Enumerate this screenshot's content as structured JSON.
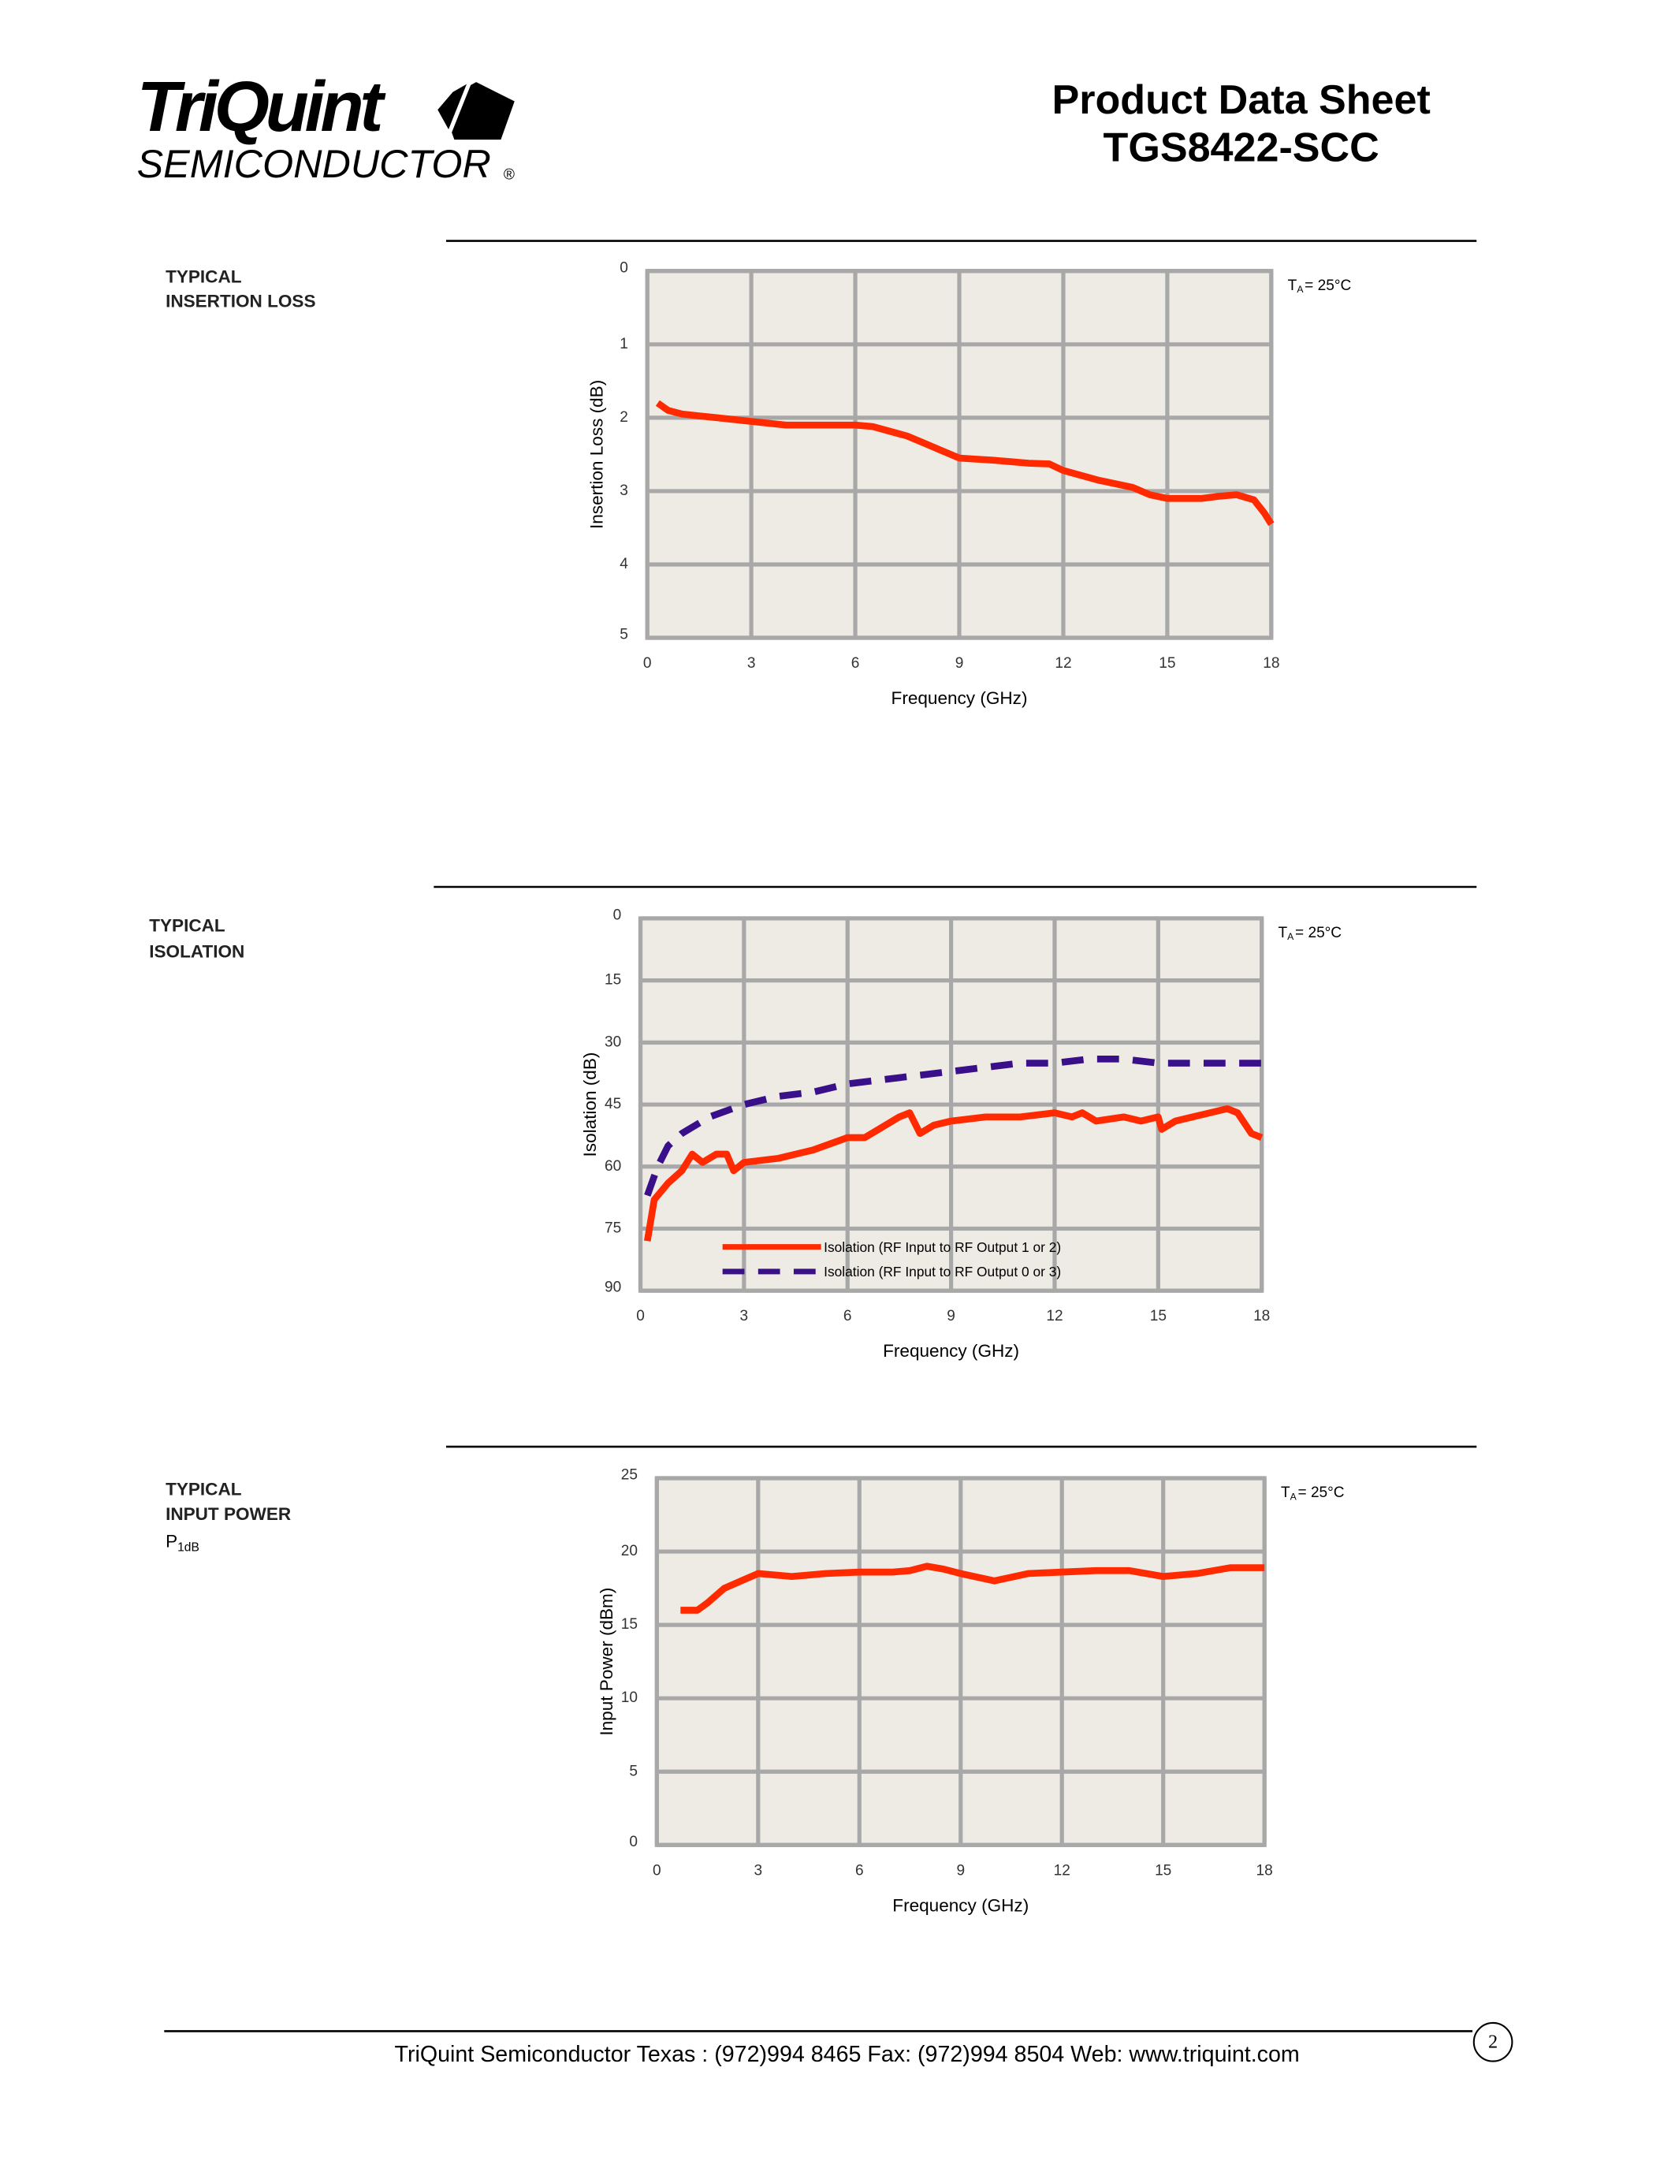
{
  "header": {
    "logo_main": "TriQuint",
    "logo_sub": "SEMICONDUCTOR",
    "logo_mark": "®",
    "title": "Product Data Sheet",
    "part": "TGS8422-SCC"
  },
  "sections": [
    {
      "lines": [
        "TYPICAL",
        "INSERTION LOSS"
      ]
    },
    {
      "lines": [
        "TYPICAL",
        "ISOLATION"
      ]
    },
    {
      "lines": [
        "TYPICAL",
        "INPUT POWER"
      ],
      "symbol": "P",
      "symbol_sub": "1dB"
    }
  ],
  "chart_data": [
    {
      "type": "line",
      "ylabel": "Insertion Loss (dB)",
      "xlabel": "Frequency (GHz)",
      "annotation": {
        "main": "T",
        "sub": "A",
        "rest": "= 25°C"
      },
      "xlim": [
        0,
        18
      ],
      "xticks": [
        0,
        3,
        6,
        9,
        12,
        15,
        18
      ],
      "ylim": [
        5,
        0
      ],
      "yticks": [
        0,
        1,
        2,
        3,
        4,
        5
      ],
      "grid": true,
      "series": [
        {
          "color": "#ff2a00",
          "line_style": "solid",
          "x": [
            0.3,
            0.6,
            1,
            2,
            3,
            4,
            5,
            6,
            6.5,
            7.5,
            8,
            8.5,
            9,
            10,
            10.5,
            11,
            11.6,
            12,
            13,
            14,
            14.5,
            15,
            16,
            16.5,
            17,
            17.5,
            17.8,
            18
          ],
          "values": [
            1.8,
            1.9,
            1.95,
            2.0,
            2.05,
            2.1,
            2.1,
            2.1,
            2.12,
            2.25,
            2.35,
            2.45,
            2.55,
            2.58,
            2.6,
            2.62,
            2.63,
            2.72,
            2.85,
            2.95,
            3.05,
            3.1,
            3.1,
            3.07,
            3.05,
            3.12,
            3.3,
            3.45
          ]
        }
      ]
    },
    {
      "type": "line",
      "ylabel": "Isolation (dB)",
      "xlabel": "Frequency (GHz)",
      "annotation": {
        "main": "T",
        "sub": "A",
        "rest": "= 25°C"
      },
      "xlim": [
        0,
        18
      ],
      "xticks": [
        0,
        3,
        6,
        9,
        12,
        15,
        18
      ],
      "ylim": [
        90,
        0
      ],
      "yticks": [
        0,
        15,
        30,
        45,
        60,
        75,
        90
      ],
      "grid": true,
      "legend": "lower left",
      "series": [
        {
          "name": "Isolation (RF Input to RF Output 1 or 2)",
          "color": "#ff2a00",
          "line_style": "solid",
          "x": [
            0.2,
            0.4,
            0.8,
            1.2,
            1.5,
            1.8,
            2.2,
            2.5,
            2.7,
            3,
            4,
            5,
            6,
            6.5,
            7.5,
            7.8,
            8.1,
            8.5,
            9,
            10,
            11,
            12,
            12.5,
            12.8,
            13.2,
            14,
            14.5,
            15,
            15.1,
            15.5,
            16,
            16.5,
            17,
            17.3,
            17.7,
            18
          ],
          "values": [
            78,
            68,
            64,
            61,
            57,
            59,
            57,
            57,
            61,
            59,
            58,
            56,
            53,
            53,
            48,
            47,
            52,
            50,
            49,
            48,
            48,
            47,
            48,
            47,
            49,
            48,
            49,
            48,
            51,
            49,
            48,
            47,
            46,
            47,
            52,
            53
          ]
        },
        {
          "name": "Isolation (RF Input to RF Output 0 or 3)",
          "color": "#3a0f8a",
          "line_style": "dashed",
          "x": [
            0.2,
            0.5,
            0.8,
            1.2,
            2,
            3,
            4,
            5,
            6,
            7,
            8,
            9,
            10,
            11,
            12,
            13,
            14,
            15,
            16,
            17,
            18
          ],
          "values": [
            67,
            60,
            55,
            52,
            48,
            45,
            43,
            42,
            40,
            39,
            38,
            37,
            36,
            35,
            35,
            34,
            34,
            35,
            35,
            35,
            35
          ]
        }
      ]
    },
    {
      "type": "line",
      "ylabel": "Input Power (dBm)",
      "xlabel": "Frequency (GHz)",
      "annotation": {
        "main": "T",
        "sub": "A",
        "rest": "= 25°C"
      },
      "xlim": [
        0,
        18
      ],
      "xticks": [
        0,
        3,
        6,
        9,
        12,
        15,
        18
      ],
      "ylim": [
        0,
        25
      ],
      "yticks": [
        0,
        5,
        10,
        15,
        20,
        25
      ],
      "grid": true,
      "series": [
        {
          "color": "#ff2a00",
          "line_style": "solid",
          "x": [
            0.7,
            1.2,
            1.5,
            2,
            2.5,
            3,
            4,
            5,
            6,
            7,
            7.5,
            8,
            8.5,
            9,
            10,
            11,
            12,
            13,
            14,
            15,
            16,
            17,
            18
          ],
          "values": [
            16,
            16,
            16.5,
            17.5,
            18,
            18.5,
            18.3,
            18.5,
            18.6,
            18.6,
            18.7,
            19,
            18.8,
            18.5,
            18,
            18.5,
            18.6,
            18.7,
            18.7,
            18.3,
            18.5,
            18.9,
            18.9
          ]
        }
      ]
    }
  ],
  "footer": {
    "text": "TriQuint Semiconductor Texas : (972)994 8465     Fax: (972)994 8504  Web:  www.triquint.com",
    "page": "2"
  }
}
